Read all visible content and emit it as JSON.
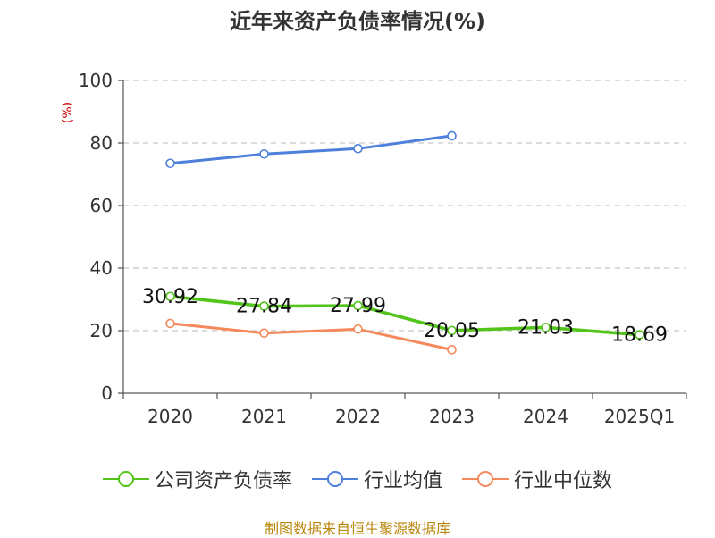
{
  "title": "近年来资产负债率情况(%)",
  "footer": "制图数据来自恒生聚源数据库",
  "chart_data": {
    "type": "line",
    "title": "近年来资产负债率情况(%)",
    "ylabel": "(%)",
    "xlabel": "",
    "ylim": [
      0,
      100
    ],
    "yticks": [
      0,
      20,
      40,
      60,
      80,
      100
    ],
    "categories": [
      "2020",
      "2021",
      "2022",
      "2023",
      "2024",
      "2025Q1"
    ],
    "grid": "horizontal-dashed",
    "legend": "bottom-center",
    "series": [
      {
        "name": "公司资产负债率",
        "color": "#52c41a",
        "values": [
          30.92,
          27.84,
          27.99,
          20.05,
          21.03,
          18.69
        ],
        "labels": [
          "30.92",
          "27.84",
          "27.99",
          "20.05",
          "21.03",
          "18.69"
        ]
      },
      {
        "name": "行业均值",
        "color": "#4e7fdd",
        "values": [
          73.5,
          76.5,
          78.2,
          82.3,
          null,
          null
        ]
      },
      {
        "name": "行业中位数",
        "color": "#f5895c",
        "values": [
          22.3,
          19.2,
          20.5,
          13.9,
          null,
          null
        ]
      }
    ]
  }
}
